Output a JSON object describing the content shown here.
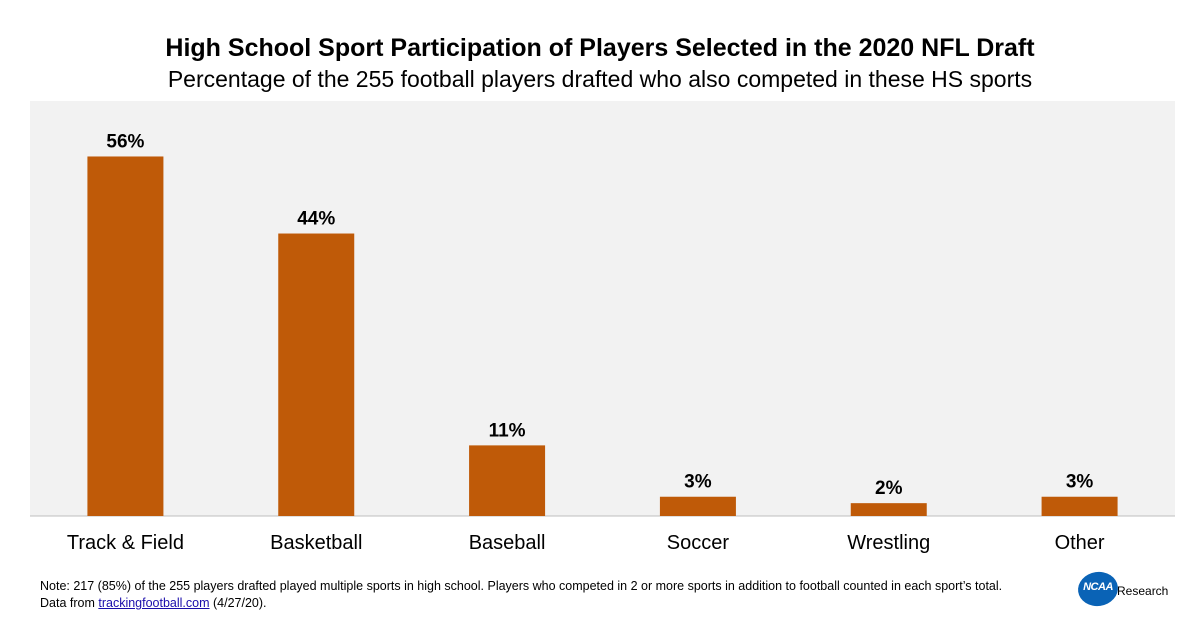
{
  "header": {
    "title": "High School Sport Participation of Players Selected in the 2020 NFL Draft",
    "subtitle": "Percentage of the 255 football players drafted who also competed in these HS sports"
  },
  "chart_data": {
    "type": "bar",
    "title": "High School Sport Participation of Players Selected in the 2020 NFL Draft",
    "subtitle": "Percentage of the 255 football players drafted who also competed in these HS sports",
    "categories": [
      "Track & Field",
      "Basketball",
      "Baseball",
      "Soccer",
      "Wrestling",
      "Other"
    ],
    "values": [
      56,
      44,
      11,
      3,
      2,
      3
    ],
    "data_labels": [
      "56%",
      "44%",
      "11%",
      "3%",
      "2%",
      "3%"
    ],
    "unit": "%",
    "ylim": [
      0,
      60
    ],
    "grid": false,
    "legend": "none",
    "bar_color": "#bf5a08",
    "plot_background": "#f2f2f2"
  },
  "footnote": {
    "line1": "Note: 217 (85%) of the 255 players drafted played multiple sports in high school. Players who competed in 2 or more sports in addition to football counted in each sport’s total.",
    "line2_prefix": "Data from ",
    "link_text": "trackingfootball.com",
    "line2_suffix": " (4/27/20)."
  },
  "logo": {
    "badge_text": "NCAA",
    "text": "Research",
    "badge_color": "#0a63b6"
  }
}
